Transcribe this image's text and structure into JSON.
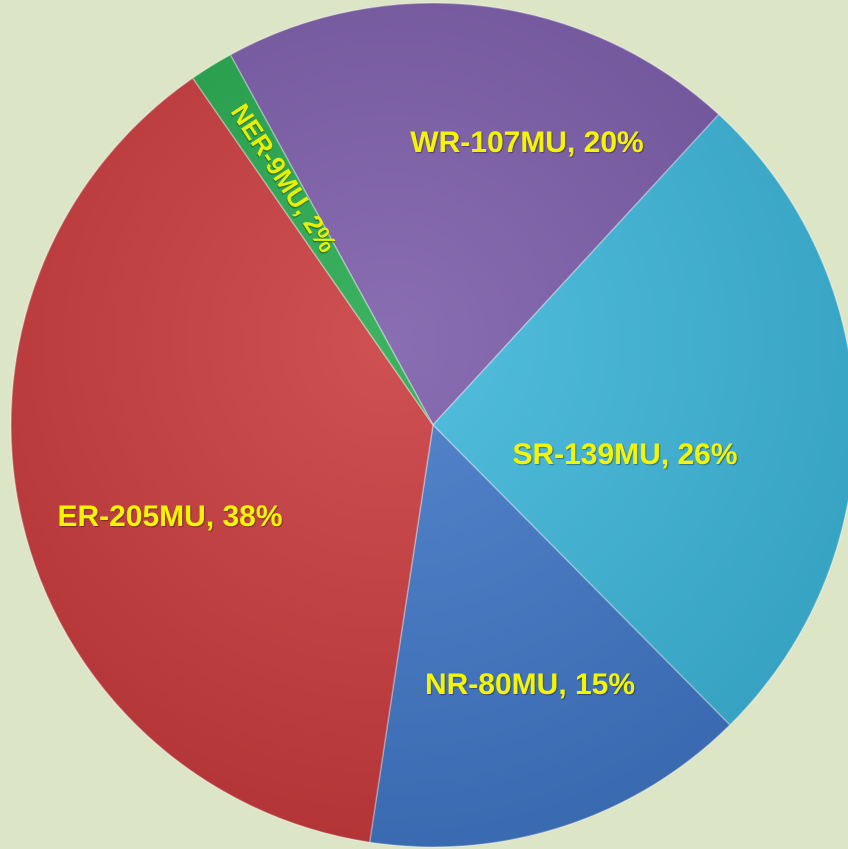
{
  "chart_data": {
    "type": "pie",
    "values": [
      107,
      139,
      80,
      205,
      9
    ],
    "value_labels": [
      "WR-107MU, 20%",
      "SR-139MU, 26%",
      "NR-80MU, 15%",
      "ER-205MU, 38%",
      "NER-9MU, 2%"
    ],
    "colors": [
      "#7a5aa8",
      "#3cb6da",
      "#3f76c6",
      "#c9393b",
      "#22a84c"
    ]
  }
}
